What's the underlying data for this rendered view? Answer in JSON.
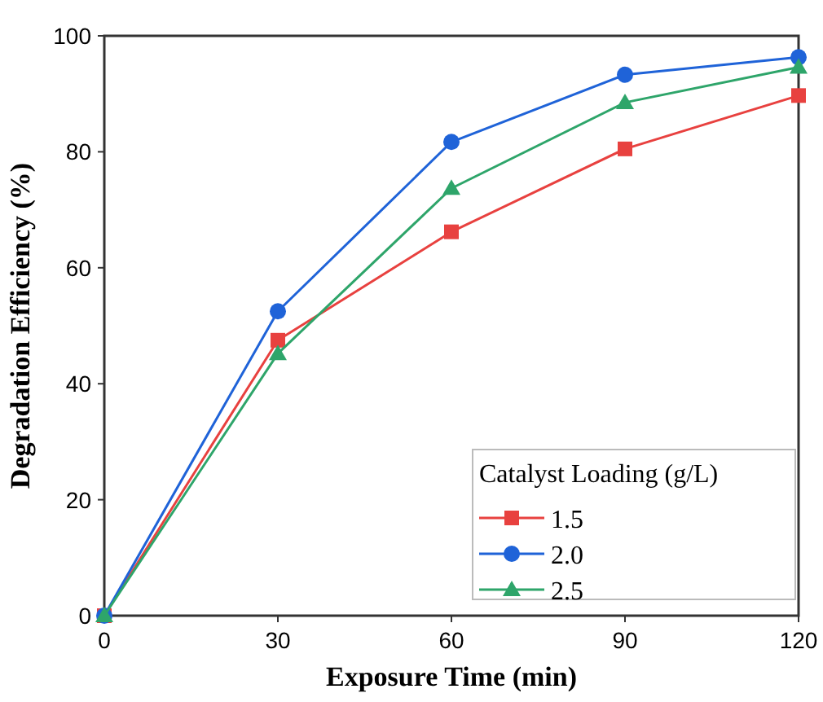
{
  "chart_data": {
    "type": "line",
    "xlabel": "Exposure Time (min)",
    "ylabel": "Degradation Efficiency (%)",
    "legend_title": "Catalyst Loading (g/L)",
    "x": [
      0,
      30,
      60,
      90,
      120
    ],
    "series": [
      {
        "name": "1.5",
        "color": "#e8413f",
        "marker": "square",
        "values": [
          0,
          47.5,
          66.2,
          80.5,
          89.7
        ]
      },
      {
        "name": "2.0",
        "color": "#1f63d8",
        "marker": "circle",
        "values": [
          0,
          52.5,
          81.7,
          93.3,
          96.3
        ]
      },
      {
        "name": "2.5",
        "color": "#2ea56a",
        "marker": "triangle",
        "values": [
          0,
          45.2,
          73.7,
          88.5,
          94.6
        ]
      }
    ],
    "xlim": [
      0,
      120
    ],
    "xticks": [
      0,
      30,
      60,
      90,
      120
    ],
    "ylim": [
      0,
      100
    ],
    "yticks": [
      0,
      20,
      40,
      60,
      80,
      100
    ],
    "grid": false,
    "legend": "bottom right",
    "line_style": "solid"
  }
}
